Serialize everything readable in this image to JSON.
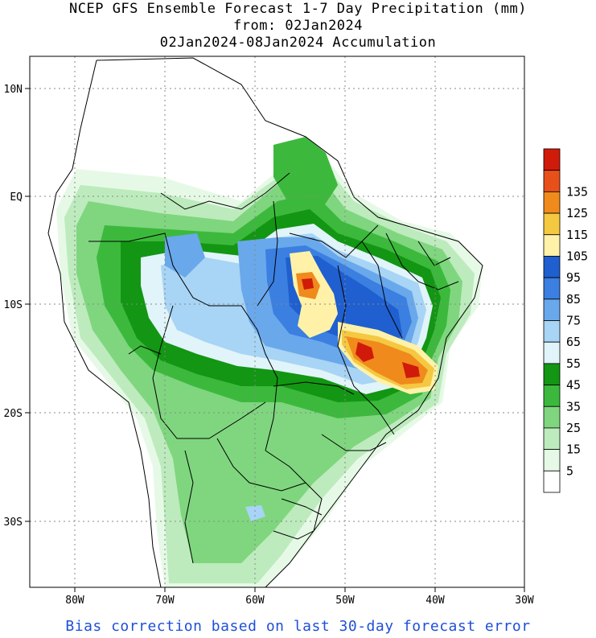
{
  "title": {
    "line1": "NCEP GFS Ensemble Forecast 1-7 Day Precipitation (mm)",
    "line2": "from: 02Jan2024",
    "line3": "02Jan2024-08Jan2024 Accumulation"
  },
  "footer": "Bias correction based on last 30-day forecast error",
  "axes": {
    "x_ticks": [
      "80W",
      "70W",
      "60W",
      "50W",
      "40W",
      "30W"
    ],
    "y_ticks": [
      "10N",
      "EQ",
      "10S",
      "20S",
      "30S"
    ]
  },
  "colorbar": {
    "labels": [
      "5",
      "15",
      "25",
      "35",
      "45",
      "55",
      "65",
      "75",
      "85",
      "95",
      "105",
      "115",
      "125",
      "135"
    ],
    "colors": [
      "#ffffff",
      "#e6f9e6",
      "#bdebbd",
      "#7fd67f",
      "#3cb93c",
      "#139613",
      "#e0f4fa",
      "#a8d4f5",
      "#6aa8ec",
      "#3b7fe0",
      "#1f5fcf",
      "#fff2a8",
      "#f5c842",
      "#f08a1c",
      "#e8501a",
      "#d01a0a"
    ]
  },
  "colors": {
    "footer_text": "#1f4fd8",
    "grid": "#888888"
  }
}
